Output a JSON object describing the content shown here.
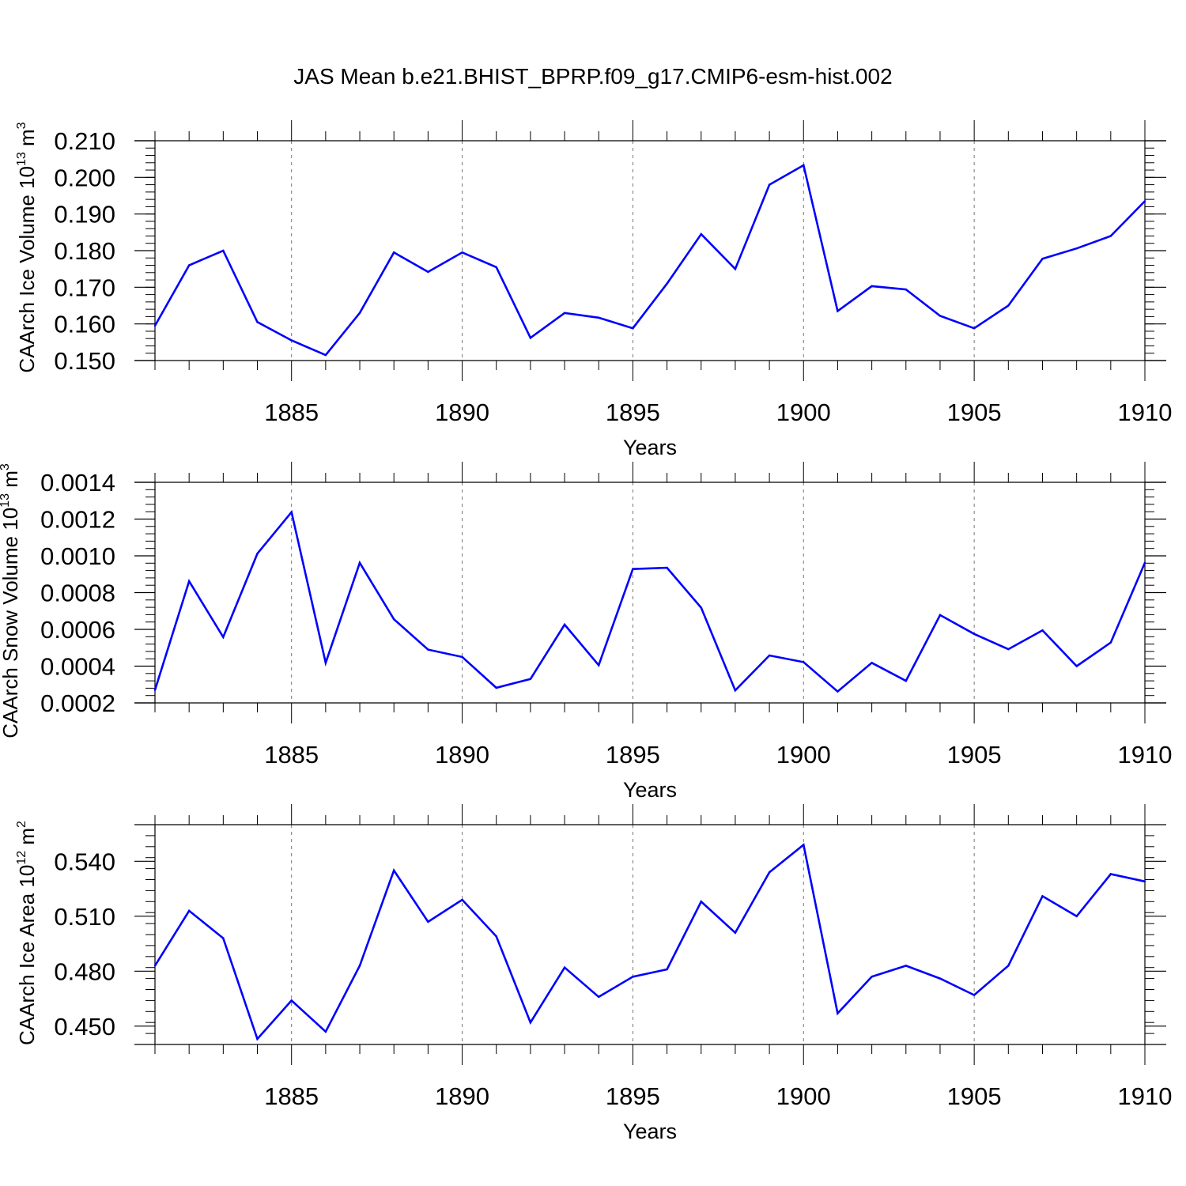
{
  "title": "JAS Mean b.e21.BHIST_BPRP.f09_g17.CMIP6-esm-hist.002",
  "colors": {
    "line": "#0000ff",
    "axis": "#000000",
    "grid": "#777777"
  },
  "chart_data": [
    {
      "type": "line",
      "ylabel": {
        "text": "CAArch Ice Volume 10",
        "exp": "13",
        "unit": " m",
        "unit_exp": "3"
      },
      "xlabel": "Years",
      "xlim": [
        1881,
        1910
      ],
      "ylim": [
        0.15,
        0.21
      ],
      "x_ticks": [
        1885,
        1890,
        1895,
        1900,
        1905,
        1910
      ],
      "y_ticks": [
        0.15,
        0.16,
        0.17,
        0.18,
        0.19,
        0.2,
        0.21
      ],
      "y_tick_labels": [
        "0.150",
        "0.160",
        "0.170",
        "0.180",
        "0.190",
        "0.200",
        "0.210"
      ],
      "y_minor_step": 0.002,
      "grid": "vertical dashed at major x ticks",
      "x": [
        1881,
        1882,
        1883,
        1884,
        1885,
        1886,
        1887,
        1888,
        1889,
        1890,
        1891,
        1892,
        1893,
        1894,
        1895,
        1896,
        1897,
        1898,
        1899,
        1900,
        1901,
        1902,
        1903,
        1904,
        1905,
        1906,
        1907,
        1908,
        1909,
        1910
      ],
      "values": [
        0.1595,
        0.176,
        0.18,
        0.1605,
        0.1555,
        0.1515,
        0.163,
        0.1795,
        0.1742,
        0.1795,
        0.1755,
        0.1562,
        0.163,
        0.1617,
        0.1588,
        0.171,
        0.1845,
        0.175,
        0.198,
        0.2033,
        0.1635,
        0.1703,
        0.1694,
        0.1622,
        0.1588,
        0.165,
        0.1778,
        0.1806,
        0.184,
        0.1935
      ]
    },
    {
      "type": "line",
      "ylabel": {
        "text": "CAArch Snow Volume 10",
        "exp": "13",
        "unit": " m",
        "unit_exp": "3"
      },
      "xlabel": "Years",
      "xlim": [
        1881,
        1910
      ],
      "ylim": [
        0.0002,
        0.0014
      ],
      "x_ticks": [
        1885,
        1890,
        1895,
        1900,
        1905,
        1910
      ],
      "y_ticks": [
        0.0002,
        0.0004,
        0.0006,
        0.0008,
        0.001,
        0.0012,
        0.0014
      ],
      "y_tick_labels": [
        "0.0002",
        "0.0004",
        "0.0006",
        "0.0008",
        "0.0010",
        "0.0012",
        "0.0014"
      ],
      "y_minor_step": 4e-05,
      "grid": "vertical dashed at major x ticks",
      "x": [
        1881,
        1882,
        1883,
        1884,
        1885,
        1886,
        1887,
        1888,
        1889,
        1890,
        1891,
        1892,
        1893,
        1894,
        1895,
        1896,
        1897,
        1898,
        1899,
        1900,
        1901,
        1902,
        1903,
        1904,
        1905,
        1906,
        1907,
        1908,
        1909,
        1910
      ],
      "values": [
        0.00027,
        0.000862,
        0.000558,
        0.001012,
        0.001238,
        0.000418,
        0.000962,
        0.000655,
        0.00049,
        0.00045,
        0.000282,
        0.00033,
        0.000626,
        0.000405,
        0.000928,
        0.000935,
        0.000718,
        0.000268,
        0.000458,
        0.000422,
        0.000262,
        0.000418,
        0.00032,
        0.000678,
        0.000575,
        0.000492,
        0.000595,
        0.0004,
        0.000528,
        0.000962
      ]
    },
    {
      "type": "line",
      "ylabel": {
        "text": "CAArch Ice Area 10",
        "exp": "12",
        "unit": " m",
        "unit_exp": "2"
      },
      "xlabel": "Years",
      "xlim": [
        1881,
        1910
      ],
      "ylim": [
        0.44,
        0.56
      ],
      "x_ticks": [
        1885,
        1890,
        1895,
        1900,
        1905,
        1910
      ],
      "y_ticks": [
        0.45,
        0.48,
        0.51,
        0.54
      ],
      "y_tick_labels": [
        "0.450",
        "0.480",
        "0.510",
        "0.540"
      ],
      "y_minor_step": 0.006,
      "grid": "vertical dashed at major x ticks",
      "x": [
        1881,
        1882,
        1883,
        1884,
        1885,
        1886,
        1887,
        1888,
        1889,
        1890,
        1891,
        1892,
        1893,
        1894,
        1895,
        1896,
        1897,
        1898,
        1899,
        1900,
        1901,
        1902,
        1903,
        1904,
        1905,
        1906,
        1907,
        1908,
        1909,
        1910
      ],
      "values": [
        0.483,
        0.513,
        0.498,
        0.443,
        0.464,
        0.447,
        0.483,
        0.535,
        0.507,
        0.519,
        0.499,
        0.452,
        0.482,
        0.466,
        0.477,
        0.481,
        0.518,
        0.501,
        0.534,
        0.549,
        0.457,
        0.477,
        0.483,
        0.476,
        0.467,
        0.483,
        0.521,
        0.51,
        0.533,
        0.529
      ]
    }
  ]
}
